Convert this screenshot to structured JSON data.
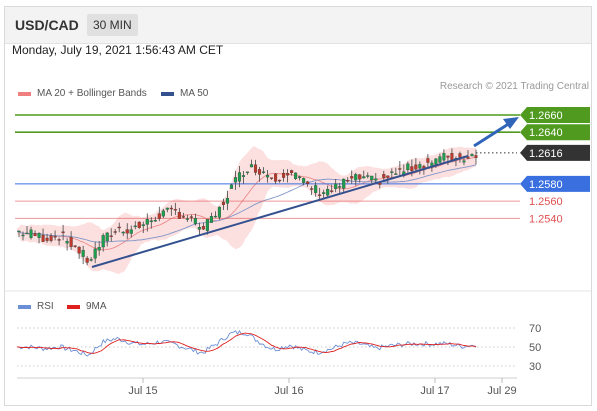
{
  "header": {
    "pair": "USD/CAD",
    "timeframe": "30 MIN",
    "date": "Monday, July 19, 2021 1:56:43 AM CET",
    "credit": "Research © 2021 Trading Central"
  },
  "legend_price": [
    {
      "label": "MA 20 + Bollinger Bands",
      "color": "#f08080"
    },
    {
      "label": "MA 50",
      "color": "#34518f"
    }
  ],
  "legend_rsi": [
    {
      "label": "RSI",
      "color": "#6b8fd6"
    },
    {
      "label": "9MA",
      "color": "#e01f1f"
    }
  ],
  "chart_data": [
    {
      "type": "candlestick",
      "ylim": [
        1.2475,
        1.2672
      ],
      "x_ticks": [
        "Jul 15",
        "Jul 16",
        "Jul 17",
        "Jul 29"
      ],
      "levels": [
        {
          "value": 1.266,
          "label": "1.2660",
          "color": "#4f9a1f",
          "style": "solid",
          "kind": "resistance"
        },
        {
          "value": 1.264,
          "label": "1.2640",
          "color": "#4f9a1f",
          "style": "solid",
          "kind": "resistance"
        },
        {
          "value": 1.2616,
          "label": "1.2616",
          "color": "#333333",
          "style": "dotted",
          "kind": "last"
        },
        {
          "value": 1.258,
          "label": "1.2580",
          "color": "#3a6fe0",
          "style": "solid",
          "kind": "pivot"
        },
        {
          "value": 1.256,
          "label": "1.2560",
          "color": "#e05050",
          "style": "thin",
          "kind": "support"
        },
        {
          "value": 1.254,
          "label": "1.2540",
          "color": "#e05050",
          "style": "thin",
          "kind": "support"
        }
      ],
      "approx_close_path": [
        1.2525,
        1.2522,
        1.2517,
        1.252,
        1.2508,
        1.249,
        1.2515,
        1.2527,
        1.2528,
        1.2534,
        1.2545,
        1.2548,
        1.254,
        1.2528,
        1.2546,
        1.2578,
        1.26,
        1.2596,
        1.2587,
        1.2596,
        1.2581,
        1.2572,
        1.2573,
        1.2583,
        1.2587,
        1.2582,
        1.259,
        1.2596,
        1.2602,
        1.2606,
        1.2612,
        1.261,
        1.2616
      ]
    },
    {
      "type": "line",
      "title": "RSI",
      "y_ticks": [
        70,
        50,
        30
      ],
      "ylim": [
        20,
        80
      ],
      "series": [
        {
          "name": "RSI",
          "color": "#6b8fd6"
        },
        {
          "name": "9MA",
          "color": "#e01f1f"
        }
      ]
    }
  ]
}
